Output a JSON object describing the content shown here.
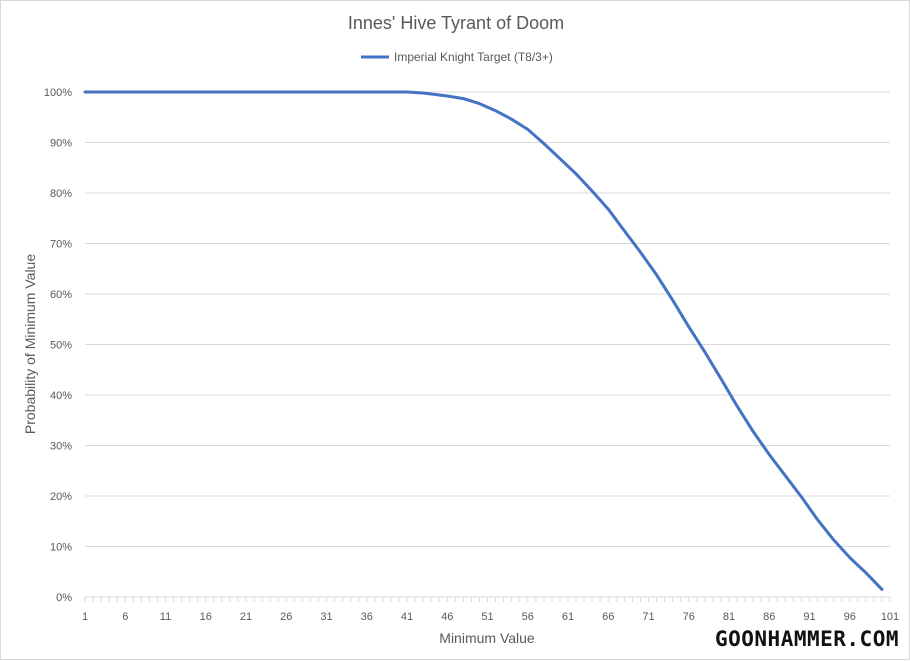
{
  "chart_data": {
    "type": "line",
    "title": "Innes' Hive Tyrant of Doom",
    "xlabel": "Minimum Value",
    "ylabel": "Probability of Minimum Value",
    "xlim": [
      1,
      101
    ],
    "ylim": [
      0,
      1
    ],
    "x_ticks": [
      1,
      6,
      11,
      16,
      21,
      26,
      31,
      36,
      41,
      46,
      51,
      56,
      61,
      66,
      71,
      76,
      81,
      86,
      91,
      96,
      101
    ],
    "y_ticks": [
      0,
      0.1,
      0.2,
      0.3,
      0.4,
      0.5,
      0.6,
      0.7,
      0.8,
      0.9,
      1.0
    ],
    "y_tick_labels": [
      "0%",
      "10%",
      "20%",
      "30%",
      "40%",
      "50%",
      "60%",
      "70%",
      "80%",
      "90%",
      "100%"
    ],
    "grid": true,
    "legend_position": "top",
    "series": [
      {
        "name": "Imperial Knight Target (T8/3+)",
        "color": "#4472c4",
        "points": [
          [
            1,
            1.0
          ],
          [
            10,
            1.0
          ],
          [
            20,
            1.0
          ],
          [
            30,
            1.0
          ],
          [
            38,
            1.0
          ],
          [
            41,
            1.0
          ],
          [
            43,
            0.998
          ],
          [
            46,
            0.992
          ],
          [
            48,
            0.987
          ],
          [
            50,
            0.977
          ],
          [
            52,
            0.963
          ],
          [
            54,
            0.946
          ],
          [
            56,
            0.926
          ],
          [
            58,
            0.898
          ],
          [
            60,
            0.868
          ],
          [
            62,
            0.838
          ],
          [
            64,
            0.804
          ],
          [
            66,
            0.768
          ],
          [
            68,
            0.725
          ],
          [
            70,
            0.683
          ],
          [
            72,
            0.638
          ],
          [
            74,
            0.588
          ],
          [
            76,
            0.535
          ],
          [
            78,
            0.485
          ],
          [
            80,
            0.432
          ],
          [
            82,
            0.378
          ],
          [
            84,
            0.328
          ],
          [
            86,
            0.282
          ],
          [
            88,
            0.24
          ],
          [
            90,
            0.198
          ],
          [
            92,
            0.153
          ],
          [
            94,
            0.113
          ],
          [
            96,
            0.078
          ],
          [
            98,
            0.048
          ],
          [
            100,
            0.015
          ]
        ]
      }
    ]
  },
  "watermark": "GOONHAMMER.COM"
}
